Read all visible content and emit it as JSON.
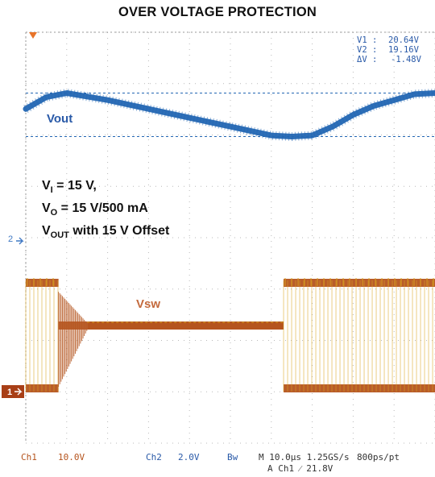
{
  "title": "OVER VOLTAGE PROTECTION",
  "conditions": {
    "line1_a": "V",
    "line1_sub": "I",
    "line1_b": " = 15 V,",
    "line2_a": "V",
    "line2_sub": "O",
    "line2_b": " = 15 V/500 mA",
    "line3_a": "V",
    "line3_sub": "OUT",
    "line3_b": " with 15 V Offset"
  },
  "cursors": {
    "v1_label": "V1 :",
    "v1_value": "20.64V",
    "v2_label": "V2 :",
    "v2_value": "19.16V",
    "dv_label": "ΔV :",
    "dv_value": "-1.48V"
  },
  "markers": {
    "ch2": "2",
    "ch1": "1"
  },
  "footer": {
    "ch1_label": "Ch1",
    "ch1_scale": "10.0V",
    "ch2_label": "Ch2",
    "ch2_scale": "2.0V",
    "bw": "Bw",
    "timebase": "M 10.0µs 1.25GS/s",
    "resolution": "800ps/pt",
    "trigger": "A  Ch1  ⁄  21.8V"
  },
  "colors": {
    "vout": "#2266b3",
    "vsw": "#b5541e",
    "vsw_highlight": "#d9a51f",
    "grid": "#b9b9b9",
    "marker_ch2": "#3f78c4",
    "marker_ch1": "#a83f17",
    "trigger": "#e8742a"
  },
  "chart_data": [
    {
      "type": "line",
      "name": "Vout",
      "x_unit": "µs",
      "y_unit": "V",
      "x_range": [
        0,
        100
      ],
      "time_div": "10.0µs",
      "cursor_levels": [
        20.64,
        19.16
      ],
      "x": [
        0,
        5,
        10,
        20,
        30,
        40,
        50,
        60,
        65,
        70,
        75,
        80,
        85,
        90,
        95,
        100
      ],
      "y": [
        20.1,
        20.5,
        20.64,
        20.4,
        20.1,
        19.8,
        19.5,
        19.2,
        19.16,
        19.2,
        19.5,
        19.9,
        20.2,
        20.4,
        20.6,
        20.64
      ]
    },
    {
      "type": "line",
      "name": "Vsw",
      "x_unit": "µs",
      "y_unit": "V",
      "x_range": [
        0,
        100
      ],
      "volts_div": "10.0V",
      "segments": [
        {
          "x": [
            0,
            8
          ],
          "state": "switching",
          "high": 25,
          "low": 0
        },
        {
          "x": [
            8,
            15
          ],
          "state": "ringing",
          "settle": 15
        },
        {
          "x": [
            15,
            63
          ],
          "state": "flat",
          "value": 15
        },
        {
          "x": [
            63,
            100
          ],
          "state": "switching",
          "high": 25,
          "low": 0
        }
      ]
    }
  ]
}
